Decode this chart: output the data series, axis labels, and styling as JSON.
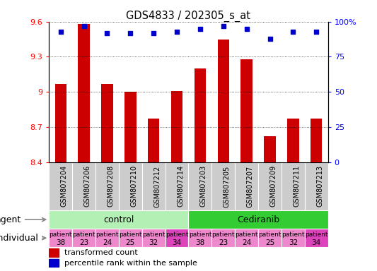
{
  "title": "GDS4833 / 202305_s_at",
  "samples": [
    "GSM807204",
    "GSM807206",
    "GSM807208",
    "GSM807210",
    "GSM807212",
    "GSM807214",
    "GSM807203",
    "GSM807205",
    "GSM807207",
    "GSM807209",
    "GSM807211",
    "GSM807213"
  ],
  "bar_values": [
    9.07,
    9.58,
    9.07,
    9.0,
    8.77,
    9.01,
    9.2,
    9.45,
    9.28,
    8.62,
    8.77,
    8.77
  ],
  "percentile_values": [
    93,
    97,
    92,
    92,
    92,
    93,
    95,
    97,
    95,
    88,
    93,
    93
  ],
  "ylim_left": [
    8.4,
    9.6
  ],
  "ylim_right": [
    0,
    100
  ],
  "yticks_left": [
    8.4,
    8.7,
    9.0,
    9.3,
    9.6
  ],
  "ytick_labels_left": [
    "8.4",
    "8.7",
    "9",
    "9.3",
    "9.6"
  ],
  "yticks_right": [
    0,
    25,
    50,
    75,
    100
  ],
  "ytick_labels_right": [
    "0",
    "25",
    "50",
    "75",
    "100%"
  ],
  "bar_color": "#cc0000",
  "dot_color": "#0000cc",
  "agent_groups": [
    {
      "label": "control",
      "start": 0,
      "end": 6,
      "color": "#b3f0b3"
    },
    {
      "label": "Cediranib",
      "start": 6,
      "end": 12,
      "color": "#33cc33"
    }
  ],
  "individual_labels_top": [
    "patient",
    "patient",
    "patient",
    "patient",
    "patient",
    "patient",
    "patient",
    "patient",
    "patient",
    "patient",
    "patient",
    "patient"
  ],
  "individual_labels_bot": [
    "38",
    "23",
    "24",
    "25",
    "32",
    "34",
    "38",
    "23",
    "24",
    "25",
    "32",
    "34"
  ],
  "indiv_colors": [
    "#ee88cc",
    "#ee88cc",
    "#ee88cc",
    "#ee88cc",
    "#ee88cc",
    "#dd44bb",
    "#ee88cc",
    "#ee88cc",
    "#ee88cc",
    "#ee88cc",
    "#ee88cc",
    "#dd44bb"
  ],
  "legend_bar_label": "transformed count",
  "legend_dot_label": "percentile rank within the sample",
  "agent_label": "agent",
  "individual_label": "individual",
  "xtick_bg": "#cccccc"
}
